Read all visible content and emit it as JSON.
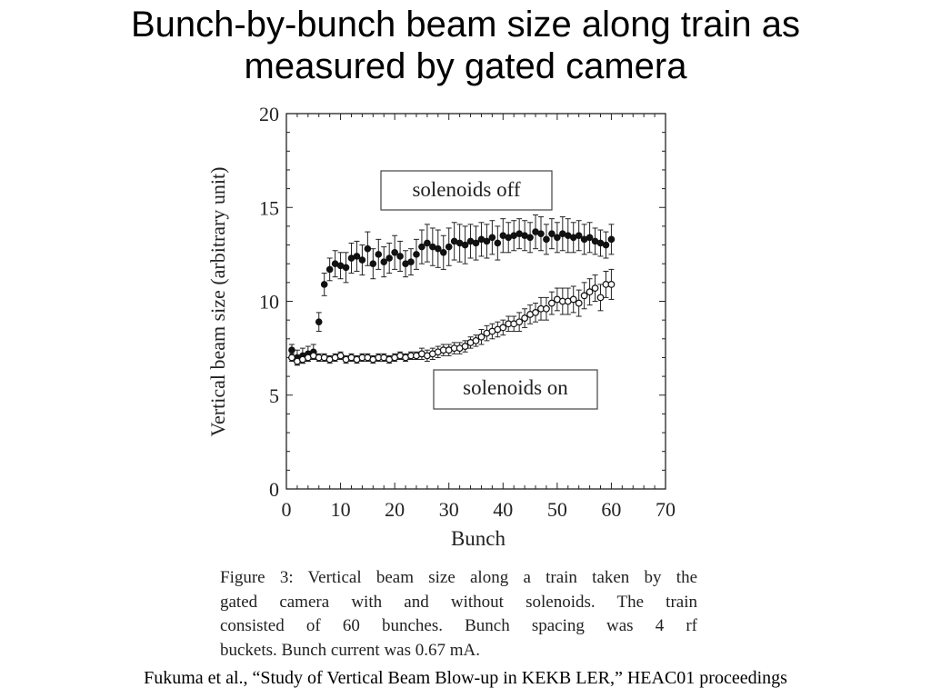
{
  "slide": {
    "title_lines": [
      "Bunch-by-bunch beam size along train as",
      "measured by gated camera"
    ],
    "caption_lines": [
      "Figure 3: Vertical beam size along a train taken by the",
      "gated camera with and without solenoids. The train",
      "consisted of 60 bunches. Bunch spacing was 4 rf",
      "buckets. Bunch current was 0.67 mA."
    ],
    "footer": "Fukuma et al., “Study of Vertical Beam Blow-up in KEKB LER,” HEAC01 proceedings"
  },
  "chart_data": {
    "type": "scatter",
    "title": "",
    "xlabel": "Bunch",
    "ylabel": "Vertical beam size (arbitrary unit)",
    "xlim": [
      0,
      70
    ],
    "ylim": [
      0,
      20
    ],
    "xticks": [
      0,
      10,
      20,
      30,
      40,
      50,
      60,
      70
    ],
    "yticks": [
      0,
      5,
      10,
      15,
      20
    ],
    "xtick_labels": [
      "0",
      "10",
      "20",
      "30",
      "40",
      "50",
      "60",
      "70"
    ],
    "ytick_labels": [
      "0",
      "5",
      "10",
      "15",
      "20"
    ],
    "grid": false,
    "annotations": [
      {
        "text": "solenoids off",
        "x": 33.5,
        "y": 15.6
      },
      {
        "text": "solenoids on",
        "x": 41.5,
        "y": 5.2
      }
    ],
    "series": [
      {
        "marker": "filled-circle",
        "x": [
          1,
          2,
          3,
          4,
          5,
          6,
          7,
          8,
          9,
          10,
          11,
          12,
          13,
          14,
          15,
          16,
          17,
          18,
          19,
          20,
          21,
          22,
          23,
          24,
          25,
          26,
          27,
          28,
          29,
          30,
          31,
          32,
          33,
          34,
          35,
          36,
          37,
          38,
          39,
          40,
          41,
          42,
          43,
          44,
          45,
          46,
          47,
          48,
          49,
          50,
          51,
          52,
          53,
          54,
          55,
          56,
          57,
          58,
          59,
          60
        ],
        "y": [
          7.4,
          7.0,
          7.1,
          7.2,
          7.3,
          8.9,
          10.9,
          11.7,
          12.0,
          11.9,
          11.8,
          12.3,
          12.4,
          12.2,
          12.8,
          12.0,
          12.5,
          12.1,
          12.3,
          12.6,
          12.4,
          12.0,
          12.1,
          12.5,
          12.9,
          13.1,
          12.9,
          12.8,
          12.6,
          12.9,
          13.2,
          13.1,
          13.0,
          13.2,
          13.1,
          13.3,
          13.2,
          13.4,
          13.1,
          13.5,
          13.4,
          13.5,
          13.6,
          13.5,
          13.4,
          13.7,
          13.6,
          13.3,
          13.6,
          13.4,
          13.6,
          13.5,
          13.4,
          13.5,
          13.3,
          13.4,
          13.2,
          13.1,
          13.0,
          13.3
        ],
        "yerr": [
          0.3,
          0.4,
          0.4,
          0.4,
          0.4,
          0.5,
          0.6,
          0.6,
          0.7,
          0.7,
          0.8,
          0.8,
          0.8,
          0.8,
          0.9,
          0.8,
          0.8,
          0.8,
          0.8,
          0.9,
          0.8,
          0.7,
          0.7,
          0.8,
          0.9,
          1.0,
          1.0,
          1.0,
          0.9,
          1.0,
          1.0,
          1.0,
          1.0,
          0.9,
          0.9,
          0.9,
          0.9,
          0.9,
          0.9,
          0.9,
          0.8,
          0.8,
          0.8,
          0.8,
          0.8,
          0.9,
          0.9,
          0.8,
          0.8,
          0.8,
          0.9,
          0.9,
          0.8,
          0.8,
          0.8,
          0.8,
          0.7,
          0.7,
          0.7,
          0.8
        ]
      },
      {
        "marker": "open-circle",
        "x": [
          1,
          2,
          3,
          4,
          5,
          6,
          7,
          8,
          9,
          10,
          11,
          12,
          13,
          14,
          15,
          16,
          17,
          18,
          19,
          20,
          21,
          22,
          23,
          24,
          25,
          26,
          27,
          28,
          29,
          30,
          31,
          32,
          33,
          34,
          35,
          36,
          37,
          38,
          39,
          40,
          41,
          42,
          43,
          44,
          45,
          46,
          47,
          48,
          49,
          50,
          51,
          52,
          53,
          54,
          55,
          56,
          57,
          58,
          59,
          60
        ],
        "y": [
          7.0,
          6.8,
          6.9,
          7.0,
          7.1,
          7.0,
          7.0,
          6.9,
          7.0,
          7.1,
          6.9,
          7.0,
          6.9,
          7.0,
          7.0,
          6.9,
          7.0,
          7.0,
          6.9,
          7.0,
          7.1,
          7.0,
          7.1,
          7.1,
          7.2,
          7.1,
          7.2,
          7.3,
          7.4,
          7.4,
          7.5,
          7.5,
          7.6,
          7.8,
          7.9,
          8.1,
          8.3,
          8.4,
          8.5,
          8.6,
          8.8,
          8.8,
          8.9,
          9.1,
          9.3,
          9.4,
          9.6,
          9.6,
          9.9,
          10.1,
          10.0,
          10.0,
          10.1,
          9.9,
          10.3,
          10.5,
          10.7,
          10.2,
          10.9,
          10.9
        ],
        "yerr": [
          0.2,
          0.2,
          0.2,
          0.2,
          0.2,
          0.2,
          0.2,
          0.2,
          0.2,
          0.2,
          0.2,
          0.2,
          0.2,
          0.2,
          0.2,
          0.2,
          0.2,
          0.2,
          0.2,
          0.2,
          0.2,
          0.2,
          0.2,
          0.2,
          0.3,
          0.3,
          0.3,
          0.3,
          0.3,
          0.3,
          0.3,
          0.3,
          0.3,
          0.3,
          0.3,
          0.4,
          0.4,
          0.4,
          0.4,
          0.4,
          0.4,
          0.4,
          0.5,
          0.5,
          0.5,
          0.5,
          0.6,
          0.6,
          0.6,
          0.6,
          0.7,
          0.7,
          0.7,
          0.7,
          0.7,
          0.7,
          0.7,
          0.7,
          0.7,
          0.8
        ]
      }
    ]
  }
}
